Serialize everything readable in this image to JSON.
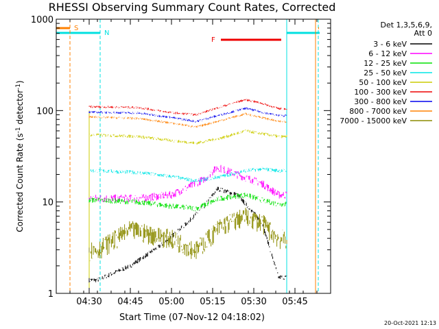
{
  "chart_data": {
    "type": "line",
    "title": "RHESSI Observing Summary Count Rates, Corrected",
    "xlabel": "Start Time (07-Nov-12 04:18:02)",
    "ylabel": "Corrected Count Rate (s-1 detector-1)",
    "ylabel_main": "Corrected Count Rate (s",
    "ylabel_sup1": "-1",
    "ylabel_mid": " detector",
    "ylabel_sup2": "-1",
    "ylabel_end": ")",
    "yscale": "log",
    "ylim": [
      1,
      1000
    ],
    "xlim": [
      "04:18",
      "05:58"
    ],
    "x_ticks": [
      "04:30",
      "04:45",
      "05:00",
      "05:15",
      "05:30",
      "05:45"
    ],
    "y_ticks": [
      "1",
      "10",
      "100",
      "1000"
    ],
    "legend_position": "right",
    "legend_header": [
      "Det 1,3,5,6,9,",
      "Att 0"
    ],
    "annotations": {
      "S": "S",
      "N": "N",
      "F": "F"
    },
    "intervals": {
      "saa": {
        "label": "S",
        "color": "#ff8000",
        "start": "04:18",
        "end": "04:23",
        "end2_start": "05:53"
      },
      "night": {
        "label": "N",
        "color": "#00e0e0",
        "start": "04:18",
        "end": "04:34",
        "end2_start": "05:42"
      },
      "flare": {
        "label": "F",
        "color": "#ee0000",
        "start": "05:18",
        "end": "05:40"
      }
    },
    "data_window": [
      "04:30",
      "05:42"
    ],
    "series": [
      {
        "name": "3 - 6 keV",
        "color": "#000000",
        "approx": [
          [
            4.55,
            1.4
          ],
          [
            4.75,
            2.0
          ],
          [
            4.95,
            3.5
          ],
          [
            5.1,
            6.0
          ],
          [
            5.2,
            9.0
          ],
          [
            5.28,
            14.0
          ],
          [
            5.4,
            12.0
          ],
          [
            5.55,
            6.0
          ],
          [
            5.65,
            1.5
          ]
        ]
      },
      {
        "name": "6 - 12 keV",
        "color": "#ff00ff",
        "approx": [
          [
            4.55,
            11.0
          ],
          [
            4.8,
            11.0
          ],
          [
            5.0,
            12.0
          ],
          [
            5.12,
            15.0
          ],
          [
            5.2,
            18.0
          ],
          [
            5.28,
            24.0
          ],
          [
            5.4,
            20.0
          ],
          [
            5.55,
            16.0
          ],
          [
            5.65,
            12.0
          ]
        ]
      },
      {
        "name": "12 - 25 keV",
        "color": "#00e000",
        "approx": [
          [
            4.55,
            10.5
          ],
          [
            4.8,
            10.0
          ],
          [
            5.0,
            9.0
          ],
          [
            5.15,
            8.5
          ],
          [
            5.3,
            11.0
          ],
          [
            5.45,
            12.0
          ],
          [
            5.55,
            10.5
          ],
          [
            5.65,
            9.5
          ]
        ]
      },
      {
        "name": "25 - 50 keV",
        "color": "#00e5e5",
        "approx": [
          [
            4.55,
            22.0
          ],
          [
            4.8,
            21.0
          ],
          [
            5.0,
            19.0
          ],
          [
            5.15,
            17.0
          ],
          [
            5.3,
            19.0
          ],
          [
            5.45,
            22.0
          ],
          [
            5.55,
            23.0
          ],
          [
            5.65,
            22.0
          ]
        ]
      },
      {
        "name": "50 - 100 keV",
        "color": "#cccc00",
        "approx": [
          [
            4.55,
            54.0
          ],
          [
            4.8,
            52.0
          ],
          [
            5.0,
            47.0
          ],
          [
            5.15,
            44.0
          ],
          [
            5.3,
            50.0
          ],
          [
            5.45,
            60.0
          ],
          [
            5.55,
            56.0
          ],
          [
            5.65,
            52.0
          ]
        ]
      },
      {
        "name": "100 - 300 keV",
        "color": "#ee0000",
        "approx": [
          [
            4.55,
            110.0
          ],
          [
            4.8,
            108.0
          ],
          [
            5.0,
            95.0
          ],
          [
            5.15,
            90.0
          ],
          [
            5.3,
            110.0
          ],
          [
            5.45,
            132.0
          ],
          [
            5.55,
            120.0
          ],
          [
            5.65,
            105.0
          ]
        ]
      },
      {
        "name": "300 - 800 keV",
        "color": "#0000ee",
        "approx": [
          [
            4.55,
            96.0
          ],
          [
            4.8,
            94.0
          ],
          [
            5.0,
            84.0
          ],
          [
            5.15,
            76.0
          ],
          [
            5.3,
            90.0
          ],
          [
            5.45,
            106.0
          ],
          [
            5.55,
            96.0
          ],
          [
            5.65,
            88.0
          ]
        ]
      },
      {
        "name": "800 - 7000 keV",
        "color": "#ff8000",
        "approx": [
          [
            4.55,
            85.0
          ],
          [
            4.8,
            82.0
          ],
          [
            5.0,
            73.0
          ],
          [
            5.15,
            66.0
          ],
          [
            5.3,
            78.0
          ],
          [
            5.45,
            92.0
          ],
          [
            5.55,
            84.0
          ],
          [
            5.65,
            76.0
          ]
        ]
      },
      {
        "name": "7000 - 15000 keV",
        "color": "#8b8b00",
        "approx": [
          [
            4.55,
            3.0
          ],
          [
            4.75,
            5.0
          ],
          [
            5.0,
            4.0
          ],
          [
            5.15,
            3.0
          ],
          [
            5.3,
            5.5
          ],
          [
            5.45,
            7.0
          ],
          [
            5.55,
            6.0
          ],
          [
            5.65,
            4.0
          ]
        ]
      }
    ]
  },
  "footer": {
    "timestamp": "20-Oct-2021 12:13"
  }
}
